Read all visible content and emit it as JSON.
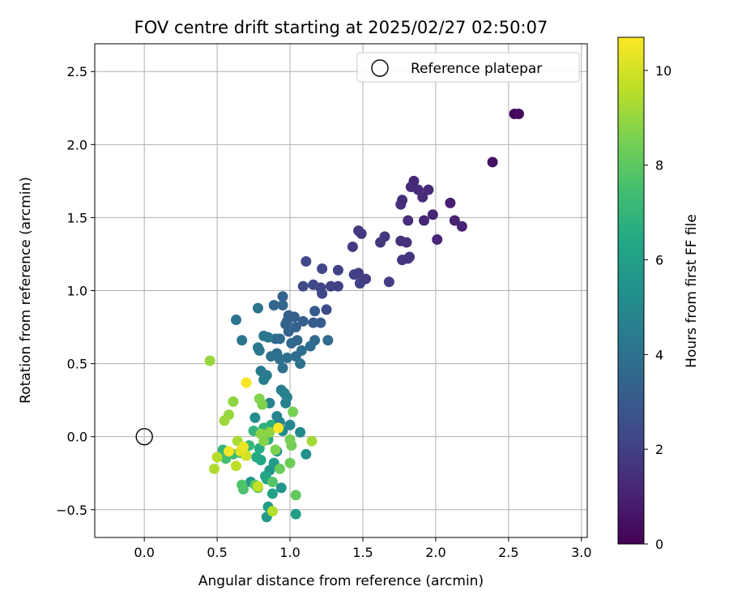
{
  "chart_data": {
    "type": "scatter",
    "title": "FOV centre drift starting at 2025/02/27 02:50:07",
    "xlabel": "Angular distance from reference (arcmin)",
    "ylabel": "Rotation from reference (arcmin)",
    "xlim": [
      -0.34,
      3.04
    ],
    "ylim": [
      -0.69,
      2.69
    ],
    "xticks": [
      0.0,
      0.5,
      1.0,
      1.5,
      2.0,
      2.5,
      3.0
    ],
    "xtick_labels": [
      "0.0",
      "0.5",
      "1.0",
      "1.5",
      "2.0",
      "2.5",
      "3.0"
    ],
    "yticks": [
      -0.5,
      0.0,
      0.5,
      1.0,
      1.5,
      2.0,
      2.5
    ],
    "ytick_labels": [
      "−0.5",
      "0.0",
      "0.5",
      "1.0",
      "1.5",
      "2.0",
      "2.5"
    ],
    "grid": true,
    "legend": {
      "placement": "top-right",
      "entries": [
        "Reference platepar"
      ]
    },
    "reference_point": {
      "x": 0.0,
      "y": 0.0,
      "marker": "open-circle",
      "label": "Reference platepar"
    },
    "colorbar": {
      "label": "Hours from first FF file",
      "colormap": "viridis",
      "range": [
        0,
        10.7
      ],
      "ticks": [
        0,
        2,
        4,
        6,
        8,
        10
      ],
      "tick_labels": [
        "0",
        "2",
        "4",
        "6",
        "8",
        "10"
      ]
    },
    "series": [
      {
        "color_by": "hours",
        "points": [
          {
            "x": 2.54,
            "y": 2.21,
            "c": 0.2
          },
          {
            "x": 2.57,
            "y": 2.21,
            "c": 0.3
          },
          {
            "x": 2.39,
            "y": 1.88,
            "c": 0.5
          },
          {
            "x": 2.1,
            "y": 1.6,
            "c": 0.9
          },
          {
            "x": 2.13,
            "y": 1.48,
            "c": 1.0
          },
          {
            "x": 2.18,
            "y": 1.44,
            "c": 1.0
          },
          {
            "x": 2.01,
            "y": 1.35,
            "c": 1.1
          },
          {
            "x": 1.98,
            "y": 1.52,
            "c": 1.1
          },
          {
            "x": 1.92,
            "y": 1.48,
            "c": 1.2
          },
          {
            "x": 1.85,
            "y": 1.75,
            "c": 1.2
          },
          {
            "x": 1.83,
            "y": 1.71,
            "c": 1.3
          },
          {
            "x": 1.88,
            "y": 1.69,
            "c": 1.3
          },
          {
            "x": 1.91,
            "y": 1.64,
            "c": 1.3
          },
          {
            "x": 1.95,
            "y": 1.69,
            "c": 1.3
          },
          {
            "x": 1.77,
            "y": 1.62,
            "c": 1.4
          },
          {
            "x": 1.76,
            "y": 1.59,
            "c": 1.4
          },
          {
            "x": 1.81,
            "y": 1.48,
            "c": 1.4
          },
          {
            "x": 1.76,
            "y": 1.34,
            "c": 1.5
          },
          {
            "x": 1.8,
            "y": 1.33,
            "c": 1.5
          },
          {
            "x": 1.82,
            "y": 1.23,
            "c": 1.5
          },
          {
            "x": 1.81,
            "y": 1.22,
            "c": 1.6
          },
          {
            "x": 1.77,
            "y": 1.21,
            "c": 1.6
          },
          {
            "x": 1.65,
            "y": 1.37,
            "c": 1.7
          },
          {
            "x": 1.62,
            "y": 1.33,
            "c": 1.7
          },
          {
            "x": 1.47,
            "y": 1.41,
            "c": 1.8
          },
          {
            "x": 1.49,
            "y": 1.39,
            "c": 1.8
          },
          {
            "x": 1.43,
            "y": 1.3,
            "c": 1.8
          },
          {
            "x": 1.68,
            "y": 1.06,
            "c": 1.9
          },
          {
            "x": 1.52,
            "y": 1.08,
            "c": 1.9
          },
          {
            "x": 1.47,
            "y": 1.12,
            "c": 1.9
          },
          {
            "x": 1.48,
            "y": 1.05,
            "c": 2.0
          },
          {
            "x": 1.44,
            "y": 1.11,
            "c": 2.0
          },
          {
            "x": 1.33,
            "y": 1.14,
            "c": 2.1
          },
          {
            "x": 1.33,
            "y": 1.03,
            "c": 2.1
          },
          {
            "x": 1.28,
            "y": 1.03,
            "c": 2.1
          },
          {
            "x": 1.22,
            "y": 1.15,
            "c": 2.2
          },
          {
            "x": 1.21,
            "y": 1.02,
            "c": 2.2
          },
          {
            "x": 1.16,
            "y": 1.04,
            "c": 2.3
          },
          {
            "x": 1.22,
            "y": 0.98,
            "c": 2.3
          },
          {
            "x": 1.11,
            "y": 1.2,
            "c": 2.3
          },
          {
            "x": 1.09,
            "y": 1.03,
            "c": 2.4
          },
          {
            "x": 1.25,
            "y": 0.87,
            "c": 2.4
          },
          {
            "x": 1.17,
            "y": 0.86,
            "c": 3.0
          },
          {
            "x": 1.16,
            "y": 0.78,
            "c": 3.1
          },
          {
            "x": 1.21,
            "y": 0.78,
            "c": 3.1
          },
          {
            "x": 1.09,
            "y": 0.79,
            "c": 3.2
          },
          {
            "x": 1.03,
            "y": 0.82,
            "c": 3.2
          },
          {
            "x": 1.04,
            "y": 0.75,
            "c": 3.3
          },
          {
            "x": 0.99,
            "y": 0.83,
            "c": 3.3
          },
          {
            "x": 0.98,
            "y": 0.79,
            "c": 3.3
          },
          {
            "x": 0.97,
            "y": 0.77,
            "c": 3.4
          },
          {
            "x": 0.99,
            "y": 0.72,
            "c": 3.4
          },
          {
            "x": 0.95,
            "y": 0.96,
            "c": 3.4
          },
          {
            "x": 0.95,
            "y": 0.9,
            "c": 3.5
          },
          {
            "x": 0.89,
            "y": 0.9,
            "c": 3.5
          },
          {
            "x": 1.05,
            "y": 0.66,
            "c": 3.6
          },
          {
            "x": 1.01,
            "y": 0.64,
            "c": 3.6
          },
          {
            "x": 0.9,
            "y": 0.67,
            "c": 3.6
          },
          {
            "x": 0.93,
            "y": 0.67,
            "c": 3.7
          },
          {
            "x": 1.26,
            "y": 0.66,
            "c": 3.7
          },
          {
            "x": 1.17,
            "y": 0.66,
            "c": 3.7
          },
          {
            "x": 1.14,
            "y": 0.62,
            "c": 3.8
          },
          {
            "x": 1.08,
            "y": 0.59,
            "c": 3.8
          },
          {
            "x": 1.04,
            "y": 0.55,
            "c": 3.8
          },
          {
            "x": 0.98,
            "y": 0.54,
            "c": 3.9
          },
          {
            "x": 0.91,
            "y": 0.57,
            "c": 3.9
          },
          {
            "x": 0.93,
            "y": 0.53,
            "c": 3.9
          },
          {
            "x": 0.95,
            "y": 0.47,
            "c": 4.0
          },
          {
            "x": 1.07,
            "y": 0.5,
            "c": 4.0
          },
          {
            "x": 0.87,
            "y": 0.55,
            "c": 4.0
          },
          {
            "x": 0.78,
            "y": 0.88,
            "c": 4.1
          },
          {
            "x": 0.63,
            "y": 0.8,
            "c": 4.1
          },
          {
            "x": 0.67,
            "y": 0.66,
            "c": 4.2
          },
          {
            "x": 0.82,
            "y": 0.69,
            "c": 4.2
          },
          {
            "x": 0.85,
            "y": 0.68,
            "c": 4.3
          },
          {
            "x": 0.78,
            "y": 0.61,
            "c": 4.3
          },
          {
            "x": 0.79,
            "y": 0.59,
            "c": 4.3
          },
          {
            "x": 0.8,
            "y": 0.45,
            "c": 4.4
          },
          {
            "x": 0.84,
            "y": 0.42,
            "c": 4.4
          },
          {
            "x": 0.82,
            "y": 0.39,
            "c": 4.5
          },
          {
            "x": 0.94,
            "y": 0.32,
            "c": 4.5
          },
          {
            "x": 0.96,
            "y": 0.3,
            "c": 4.6
          },
          {
            "x": 0.97,
            "y": 0.23,
            "c": 4.6
          },
          {
            "x": 0.98,
            "y": 0.27,
            "c": 4.7
          },
          {
            "x": 0.86,
            "y": 0.23,
            "c": 4.7
          },
          {
            "x": 0.91,
            "y": 0.14,
            "c": 4.8
          },
          {
            "x": 0.93,
            "y": 0.1,
            "c": 4.8
          },
          {
            "x": 1.0,
            "y": 0.08,
            "c": 4.9
          },
          {
            "x": 0.95,
            "y": 0.04,
            "c": 5.0
          },
          {
            "x": 1.07,
            "y": 0.03,
            "c": 5.0
          },
          {
            "x": 0.76,
            "y": 0.13,
            "c": 5.2
          },
          {
            "x": 1.11,
            "y": -0.12,
            "c": 5.3
          },
          {
            "x": 0.91,
            "y": -0.1,
            "c": 5.4
          },
          {
            "x": 0.94,
            "y": -0.35,
            "c": 5.5
          },
          {
            "x": 0.73,
            "y": -0.31,
            "c": 5.6
          },
          {
            "x": 0.86,
            "y": -0.23,
            "c": 5.7
          },
          {
            "x": 0.89,
            "y": -0.18,
            "c": 5.8
          },
          {
            "x": 0.84,
            "y": -0.55,
            "c": 5.8
          },
          {
            "x": 0.85,
            "y": -0.48,
            "c": 5.9
          },
          {
            "x": 1.04,
            "y": -0.53,
            "c": 6.0
          },
          {
            "x": 0.88,
            "y": -0.39,
            "c": 6.1
          },
          {
            "x": 0.84,
            "y": -0.29,
            "c": 6.2
          },
          {
            "x": 0.83,
            "y": -0.27,
            "c": 6.3
          },
          {
            "x": 0.8,
            "y": -0.16,
            "c": 6.4
          },
          {
            "x": 0.77,
            "y": -0.14,
            "c": 6.5
          },
          {
            "x": 0.79,
            "y": -0.08,
            "c": 6.6
          },
          {
            "x": 0.85,
            "y": -0.02,
            "c": 6.7
          },
          {
            "x": 0.87,
            "y": 0.08,
            "c": 6.8
          },
          {
            "x": 0.82,
            "y": 0.06,
            "c": 6.9
          },
          {
            "x": 0.75,
            "y": 0.04,
            "c": 7.0
          },
          {
            "x": 0.72,
            "y": -0.06,
            "c": 7.1
          },
          {
            "x": 0.69,
            "y": -0.08,
            "c": 7.2
          },
          {
            "x": 0.66,
            "y": -0.11,
            "c": 7.3
          },
          {
            "x": 0.61,
            "y": -0.12,
            "c": 7.4
          },
          {
            "x": 0.54,
            "y": -0.09,
            "c": 7.0
          },
          {
            "x": 0.56,
            "y": -0.15,
            "c": 7.5
          },
          {
            "x": 0.68,
            "y": -0.36,
            "c": 7.6
          },
          {
            "x": 0.67,
            "y": -0.33,
            "c": 7.7
          },
          {
            "x": 0.88,
            "y": -0.31,
            "c": 7.8
          },
          {
            "x": 0.76,
            "y": -0.33,
            "c": 7.9
          },
          {
            "x": 0.78,
            "y": -0.35,
            "c": 8.0
          },
          {
            "x": 1.04,
            "y": -0.4,
            "c": 8.1
          },
          {
            "x": 0.93,
            "y": -0.22,
            "c": 8.2
          },
          {
            "x": 1.0,
            "y": -0.18,
            "c": 8.3
          },
          {
            "x": 1.01,
            "y": -0.06,
            "c": 8.4
          },
          {
            "x": 1.0,
            "y": -0.02,
            "c": 8.5
          },
          {
            "x": 0.9,
            "y": -0.09,
            "c": 8.6
          },
          {
            "x": 0.82,
            "y": -0.03,
            "c": 8.7
          },
          {
            "x": 0.8,
            "y": 0.02,
            "c": 8.8
          },
          {
            "x": 0.86,
            "y": 0.03,
            "c": 8.9
          },
          {
            "x": 0.81,
            "y": 0.22,
            "c": 8.6
          },
          {
            "x": 0.79,
            "y": 0.26,
            "c": 8.7
          },
          {
            "x": 0.61,
            "y": 0.24,
            "c": 8.9
          },
          {
            "x": 0.58,
            "y": 0.15,
            "c": 9.0
          },
          {
            "x": 0.55,
            "y": 0.11,
            "c": 9.1
          },
          {
            "x": 1.02,
            "y": 0.17,
            "c": 8.5
          },
          {
            "x": 1.15,
            "y": -0.03,
            "c": 9.2
          },
          {
            "x": 0.64,
            "y": -0.03,
            "c": 9.3
          },
          {
            "x": 0.48,
            "y": -0.22,
            "c": 9.4
          },
          {
            "x": 0.5,
            "y": -0.14,
            "c": 9.5
          },
          {
            "x": 0.63,
            "y": -0.2,
            "c": 9.6
          },
          {
            "x": 0.78,
            "y": -0.34,
            "c": 9.7
          },
          {
            "x": 0.45,
            "y": 0.52,
            "c": 9.0
          },
          {
            "x": 0.88,
            "y": -0.51,
            "c": 9.5
          },
          {
            "x": 0.7,
            "y": -0.13,
            "c": 10.0
          },
          {
            "x": 0.66,
            "y": -0.1,
            "c": 10.2
          },
          {
            "x": 0.68,
            "y": -0.07,
            "c": 10.4
          },
          {
            "x": 0.58,
            "y": -0.1,
            "c": 10.5
          },
          {
            "x": 0.7,
            "y": 0.37,
            "c": 10.6
          },
          {
            "x": 0.92,
            "y": 0.06,
            "c": 10.7
          }
        ]
      }
    ]
  },
  "colors": {
    "grid": "#b0b0b0",
    "axes": "#000000",
    "background": "#ffffff"
  }
}
